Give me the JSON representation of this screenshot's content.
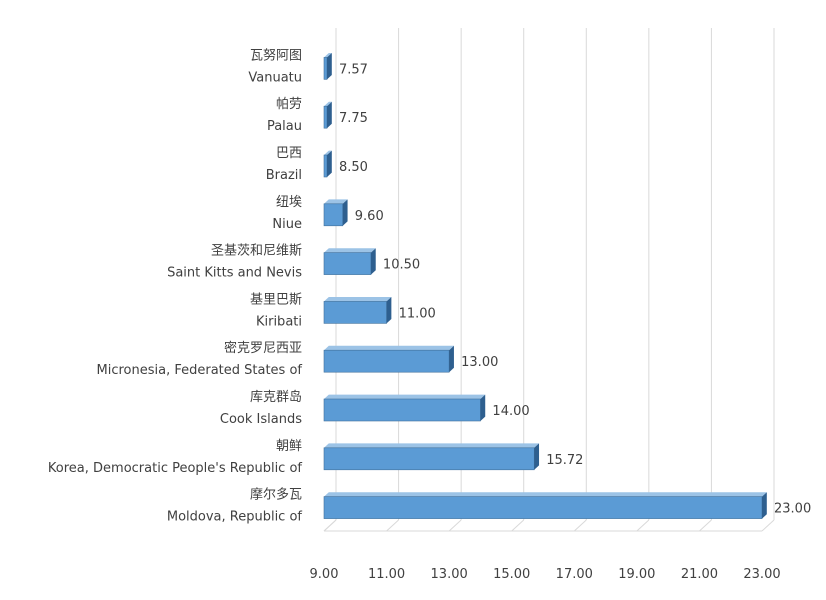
{
  "chart_data": {
    "type": "bar",
    "orientation": "horizontal",
    "style": "3d",
    "title": "",
    "xlabel": "",
    "ylabel": "",
    "xlim": [
      9,
      23
    ],
    "x_ticks": [
      "9.00",
      "11.00",
      "13.00",
      "15.00",
      "17.00",
      "19.00",
      "21.00",
      "23.00"
    ],
    "grid": "vertical",
    "legend": "none",
    "bar_color": "#5b9bd5",
    "categories": [
      {
        "zh": "瓦努阿图",
        "en": "Vanuatu",
        "value": 7.57,
        "label": "7.57"
      },
      {
        "zh": "帕劳",
        "en": "Palau",
        "value": 7.75,
        "label": "7.75"
      },
      {
        "zh": "巴西",
        "en": "Brazil",
        "value": 8.5,
        "label": "8.50"
      },
      {
        "zh": "纽埃",
        "en": "Niue",
        "value": 9.6,
        "label": "9.60"
      },
      {
        "zh": "圣基茨和尼维斯",
        "en": "Saint Kitts and Nevis",
        "value": 10.5,
        "label": "10.50"
      },
      {
        "zh": "基里巴斯",
        "en": "Kiribati",
        "value": 11.0,
        "label": "11.00"
      },
      {
        "zh": "密克罗尼西亚",
        "en": "Micronesia, Federated States of",
        "value": 13.0,
        "label": "13.00"
      },
      {
        "zh": "库克群岛",
        "en": "Cook Islands",
        "value": 14.0,
        "label": "14.00"
      },
      {
        "zh": "朝鲜",
        "en": "Korea, Democratic People's Republic of",
        "value": 15.72,
        "label": "15.72"
      },
      {
        "zh": "摩尔多瓦",
        "en": "Moldova, Republic of",
        "value": 23.0,
        "label": "23.00"
      }
    ]
  }
}
